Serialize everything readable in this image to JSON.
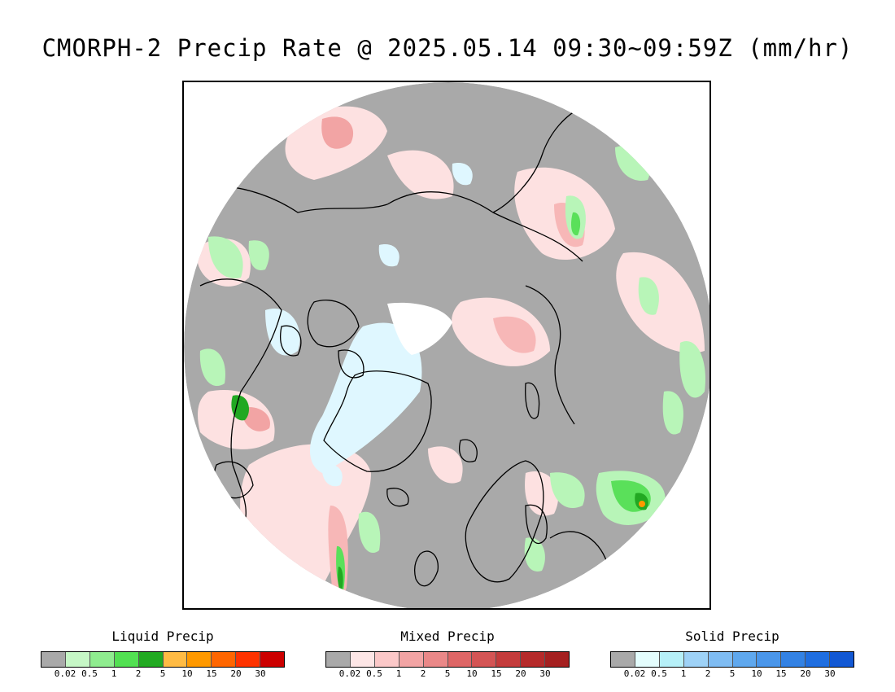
{
  "title": "CMORPH-2 Precip Rate @ 2025.05.14 09:30~09:59Z (mm/hr)",
  "map": {
    "projection": "north polar stereographic",
    "colors": {
      "no_precip": "#a9a9a9",
      "liquid_light": "#b8f5b8",
      "liquid_mid": "#5ae05a",
      "liquid_heavy": "#22a822",
      "mixed_light": "#fde1e1",
      "mixed_mid": "#f7b7b7",
      "mixed_heavy": "#e08080",
      "solid_light": "#dff7ff",
      "coastline": "#000000"
    }
  },
  "legends": [
    {
      "title": "Liquid Precip",
      "colors": [
        "#a9a9a9",
        "#c6f7c6",
        "#8fec8f",
        "#52e052",
        "#22aa22",
        "#ffbb44",
        "#ff9900",
        "#ff6600",
        "#ff3300",
        "#cc0000"
      ],
      "ticks": [
        "0.02",
        "0.5",
        "1",
        "2",
        "5",
        "10",
        "15",
        "20",
        "30"
      ]
    },
    {
      "title": "Mixed Precip",
      "colors": [
        "#a9a9a9",
        "#fde6e6",
        "#fbc8c8",
        "#f2a4a4",
        "#ea8888",
        "#de6666",
        "#d45555",
        "#c43c3c",
        "#b52a2a",
        "#a52020"
      ],
      "ticks": [
        "0.02",
        "0.5",
        "1",
        "2",
        "5",
        "10",
        "15",
        "20",
        "30"
      ]
    },
    {
      "title": "Solid Precip",
      "colors": [
        "#a9a9a9",
        "#e4fdfd",
        "#b6f0f8",
        "#9ed2f7",
        "#7fbcf2",
        "#5fa8ee",
        "#4a96ea",
        "#3382e4",
        "#1f6ee0",
        "#1258d4"
      ],
      "ticks": [
        "0.02",
        "0.5",
        "1",
        "2",
        "5",
        "10",
        "15",
        "20",
        "30"
      ]
    }
  ]
}
